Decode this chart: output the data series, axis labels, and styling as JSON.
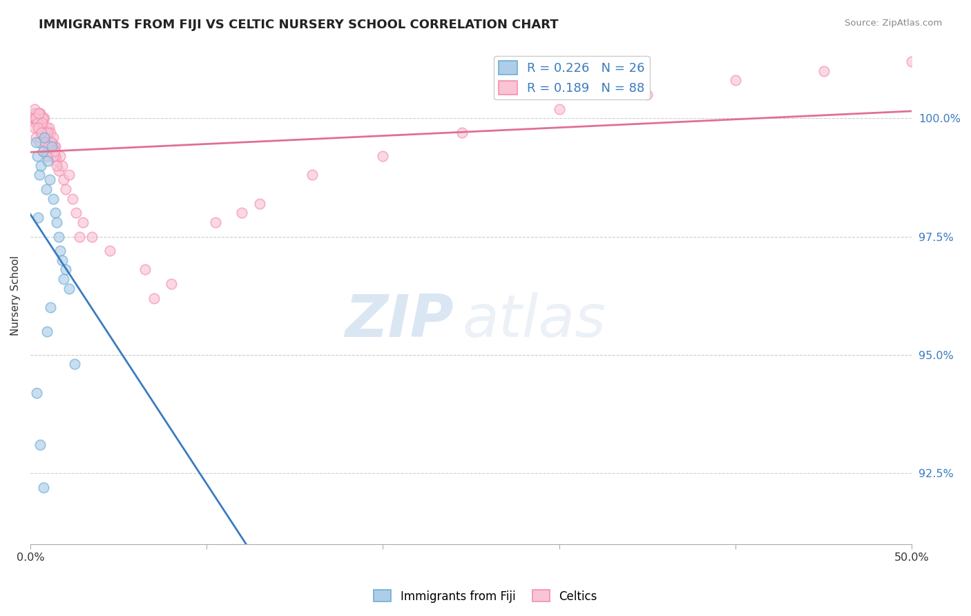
{
  "title": "IMMIGRANTS FROM FIJI VS CELTIC NURSERY SCHOOL CORRELATION CHART",
  "source": "Source: ZipAtlas.com",
  "ylabel": "Nursery School",
  "xlim": [
    0.0,
    50.0
  ],
  "ylim": [
    91.0,
    101.5
  ],
  "yticks": [
    92.5,
    95.0,
    97.5,
    100.0
  ],
  "ytick_labels": [
    "92.5%",
    "95.0%",
    "97.5%",
    "100.0%"
  ],
  "xticks": [
    0.0,
    10.0,
    20.0,
    30.0,
    40.0,
    50.0
  ],
  "xtick_labels": [
    "0.0%",
    "",
    "",
    "",
    "",
    "50.0%"
  ],
  "fiji_R": 0.226,
  "fiji_N": 26,
  "celtics_R": 0.189,
  "celtics_N": 88,
  "fiji_color": "#6baed6",
  "fiji_fill": "#aecde8",
  "celtics_color": "#f48fb1",
  "celtics_fill": "#f9c4d4",
  "trend_fiji_color": "#3a7bbf",
  "trend_celtics_color": "#e07090",
  "watermark_zip": "ZIP",
  "watermark_atlas": "atlas",
  "fiji_x": [
    0.3,
    0.4,
    0.5,
    0.6,
    0.7,
    0.8,
    0.9,
    1.0,
    1.1,
    1.2,
    1.3,
    1.4,
    1.5,
    1.6,
    1.7,
    1.8,
    2.0,
    2.2,
    2.5,
    0.35,
    0.55,
    0.75,
    0.95,
    1.15,
    1.9,
    0.45
  ],
  "fiji_y": [
    99.5,
    99.2,
    98.8,
    99.0,
    99.3,
    99.6,
    98.5,
    99.1,
    98.7,
    99.4,
    98.3,
    98.0,
    97.8,
    97.5,
    97.2,
    97.0,
    96.8,
    96.4,
    94.8,
    94.2,
    93.1,
    92.2,
    95.5,
    96.0,
    96.6,
    97.9
  ],
  "celtics_x": [
    0.15,
    0.2,
    0.25,
    0.3,
    0.35,
    0.4,
    0.45,
    0.5,
    0.55,
    0.6,
    0.65,
    0.7,
    0.75,
    0.8,
    0.85,
    0.9,
    0.95,
    1.0,
    1.05,
    1.1,
    1.15,
    1.2,
    1.25,
    1.3,
    1.35,
    1.4,
    1.5,
    1.6,
    1.7,
    1.8,
    1.9,
    2.0,
    2.2,
    2.4,
    2.6,
    3.0,
    3.5,
    0.22,
    0.32,
    0.42,
    0.52,
    0.62,
    0.72,
    0.82,
    0.92,
    1.02,
    1.12,
    1.22,
    1.32,
    1.42,
    0.28,
    0.38,
    0.48,
    0.58,
    0.68,
    0.78,
    0.88,
    0.98,
    1.08,
    1.18,
    1.28,
    1.38,
    1.48,
    0.23,
    0.33,
    0.43,
    0.53,
    0.63,
    0.73,
    0.83,
    0.93,
    1.03,
    2.8,
    4.5,
    6.5,
    8.0,
    10.5,
    13.0,
    16.0,
    20.0,
    24.5,
    30.0,
    35.0,
    40.0,
    45.0,
    50.0,
    7.0,
    12.0
  ],
  "celtics_y": [
    100.0,
    100.1,
    100.0,
    99.9,
    100.1,
    100.0,
    99.8,
    99.9,
    100.1,
    99.7,
    99.9,
    100.0,
    99.8,
    100.0,
    99.7,
    99.5,
    99.8,
    99.6,
    99.8,
    99.4,
    99.7,
    99.5,
    99.3,
    99.6,
    99.2,
    99.4,
    99.1,
    98.9,
    99.2,
    99.0,
    98.7,
    98.5,
    98.8,
    98.3,
    98.0,
    97.8,
    97.5,
    100.2,
    100.0,
    99.9,
    100.1,
    99.8,
    100.0,
    99.7,
    99.6,
    99.4,
    99.5,
    99.3,
    99.4,
    99.2,
    100.0,
    99.9,
    100.1,
    99.7,
    99.9,
    99.6,
    99.5,
    99.7,
    99.3,
    99.5,
    99.2,
    99.3,
    99.0,
    99.8,
    99.6,
    99.8,
    99.5,
    99.7,
    99.3,
    99.5,
    99.2,
    99.4,
    97.5,
    97.2,
    96.8,
    96.5,
    97.8,
    98.2,
    98.8,
    99.2,
    99.7,
    100.2,
    100.5,
    100.8,
    101.0,
    101.2,
    96.2,
    98.0
  ]
}
